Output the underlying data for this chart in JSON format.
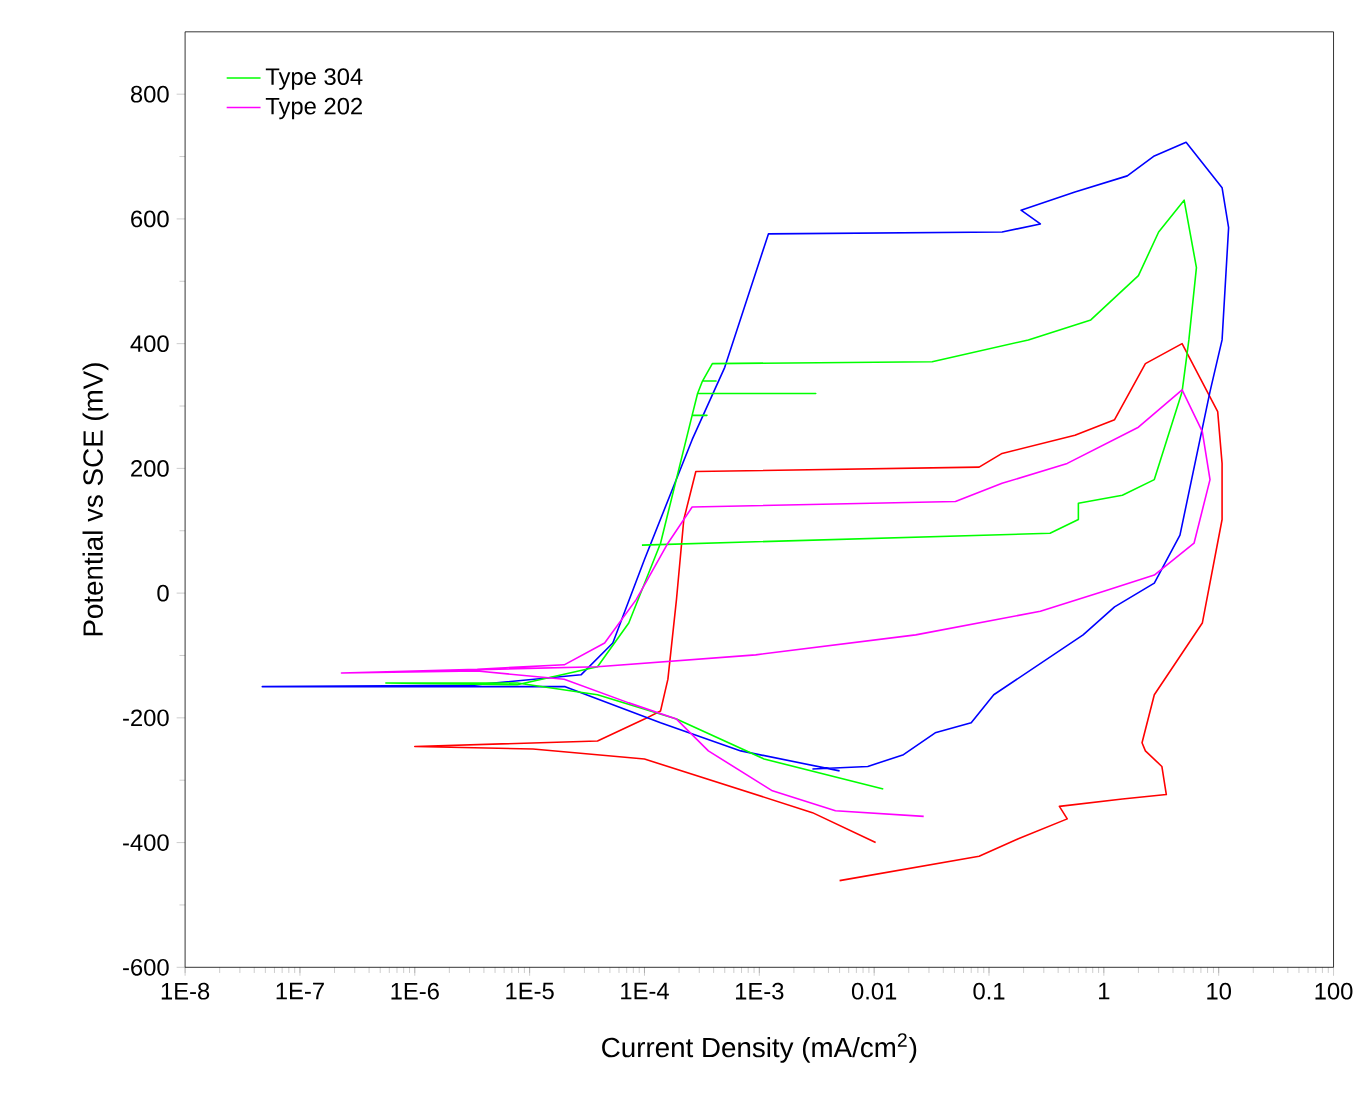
{
  "chart_data": {
    "type": "line",
    "xlabel": "Current Density (mA/cm$^{2}$)",
    "ylabel": "Potential vs SCE (mV)",
    "log": "x",
    "xlim": [
      1e-08,
      100
    ],
    "ylim": [
      -600,
      900
    ],
    "xticks": [
      {
        "value": 1e-08,
        "label": "1E-8"
      },
      {
        "value": 1e-07,
        "label": "1E-7"
      },
      {
        "value": 1e-06,
        "label": "1E-6"
      },
      {
        "value": 1e-05,
        "label": "1E-5"
      },
      {
        "value": 0.0001,
        "label": "1E-4"
      },
      {
        "value": 0.001,
        "label": "1E-3"
      },
      0.01,
      0.1,
      1,
      10,
      100
    ],
    "yticks": [
      -600,
      -400,
      -200,
      0,
      200,
      400,
      600,
      800
    ],
    "grid": false,
    "legend": "top left",
    "series": [
      {
        "color": "#ff0000",
        "x": [
          0.0103,
          0.0029,
          0.0001,
          1.07e-05,
          1e-06,
          3.9e-05,
          0.0001,
          0.000138,
          0.00016,
          0.00019,
          0.00022,
          0.00028,
          0.082,
          0.13,
          0.56,
          1.24,
          2.3,
          4.8,
          9.8,
          10.7,
          10.7,
          7.2,
          2.75,
          2.15,
          2.3,
          3.2,
          3.5,
          1.45,
          0.41,
          0.48,
          0.18,
          0.082,
          0.005
        ],
        "values": [
          -400,
          -352,
          -266,
          -250,
          -246,
          -237,
          -202,
          -189,
          -138,
          -10,
          118,
          195,
          202,
          224,
          253,
          278,
          368,
          400,
          291,
          208,
          118,
          -48,
          -163,
          -240,
          -253,
          -278,
          -323,
          -330,
          -342,
          -362,
          -394,
          -422,
          -461
        ]
      },
      {
        "color": "#0000ff",
        "x": [
          0.005,
          0.00069,
          0.000138,
          2.04e-05,
          3e-06,
          4.7e-08,
          3e-06,
          2.8e-05,
          5.3e-05,
          0.0001,
          0.00026,
          0.0005,
          0.0012,
          0.13,
          0.28,
          0.19,
          0.56,
          1.6,
          2.75,
          5.2,
          10.7,
          12.2,
          10.7,
          8.4,
          4.6,
          2.75,
          1.24,
          0.66,
          0.11,
          0.07,
          0.034,
          0.018,
          0.0088,
          0.0029
        ],
        "values": [
          -285,
          -253,
          -208,
          -150,
          -150,
          -150,
          -148,
          -131,
          -80,
          54,
          246,
          362,
          576,
          579,
          592,
          614,
          643,
          669,
          701,
          723,
          650,
          586,
          406,
          323,
          93,
          16,
          -22,
          -67,
          -163,
          -208,
          -224,
          -259,
          -278,
          -282
        ]
      },
      {
        "name": "Type 304",
        "color": "#00ff00",
        "x": [
          0.012,
          0.0011,
          0.00019,
          3.9e-05,
          7.8e-06,
          5.6e-07,
          7.8e-06,
          3.9e-05,
          7.3e-05,
          0.000138,
          0.00026,
          0.00035,
          0.00026,
          0.00029,
          0.0031,
          0.00029,
          0.00032,
          0.00042,
          0.00032,
          0.00039,
          0.032,
          0.22,
          0.77,
          2.0,
          3.0,
          5.0,
          6.4,
          5.5,
          4.8,
          2.75,
          1.45,
          0.6,
          0.6,
          0.34,
          9.5e-05
        ],
        "values": [
          -314,
          -266,
          -202,
          -163,
          -144,
          -144,
          -147,
          -118,
          -48,
          80,
          285,
          285,
          285,
          320,
          320,
          320,
          340,
          340,
          340,
          368,
          371,
          406,
          438,
          509,
          579,
          630,
          522,
          406,
          323,
          182,
          157,
          144,
          118,
          96,
          77
        ]
      },
      {
        "name": "Type 202",
        "color": "#ff00ff",
        "x": [
          0.027,
          0.0046,
          0.0013,
          0.00036,
          0.00019,
          7.3e-05,
          2e-05,
          3.5e-06,
          2.3e-07,
          3.5e-06,
          2e-05,
          4.5e-05,
          8.5e-05,
          0.00016,
          0.00026,
          0.051,
          0.13,
          0.48,
          2.0,
          4.8,
          7.2,
          8.4,
          6.1,
          2.75,
          1.0,
          0.28,
          0.023,
          0.00093,
          3.9e-05,
          2.3e-07
        ],
        "values": [
          -358,
          -349,
          -317,
          -253,
          -202,
          -176,
          -138,
          -125,
          -128,
          -122,
          -115,
          -80,
          -10,
          80,
          138,
          147,
          176,
          208,
          266,
          326,
          259,
          182,
          80,
          29,
          3,
          -29,
          -67,
          -99,
          -118,
          -128
        ]
      }
    ]
  }
}
